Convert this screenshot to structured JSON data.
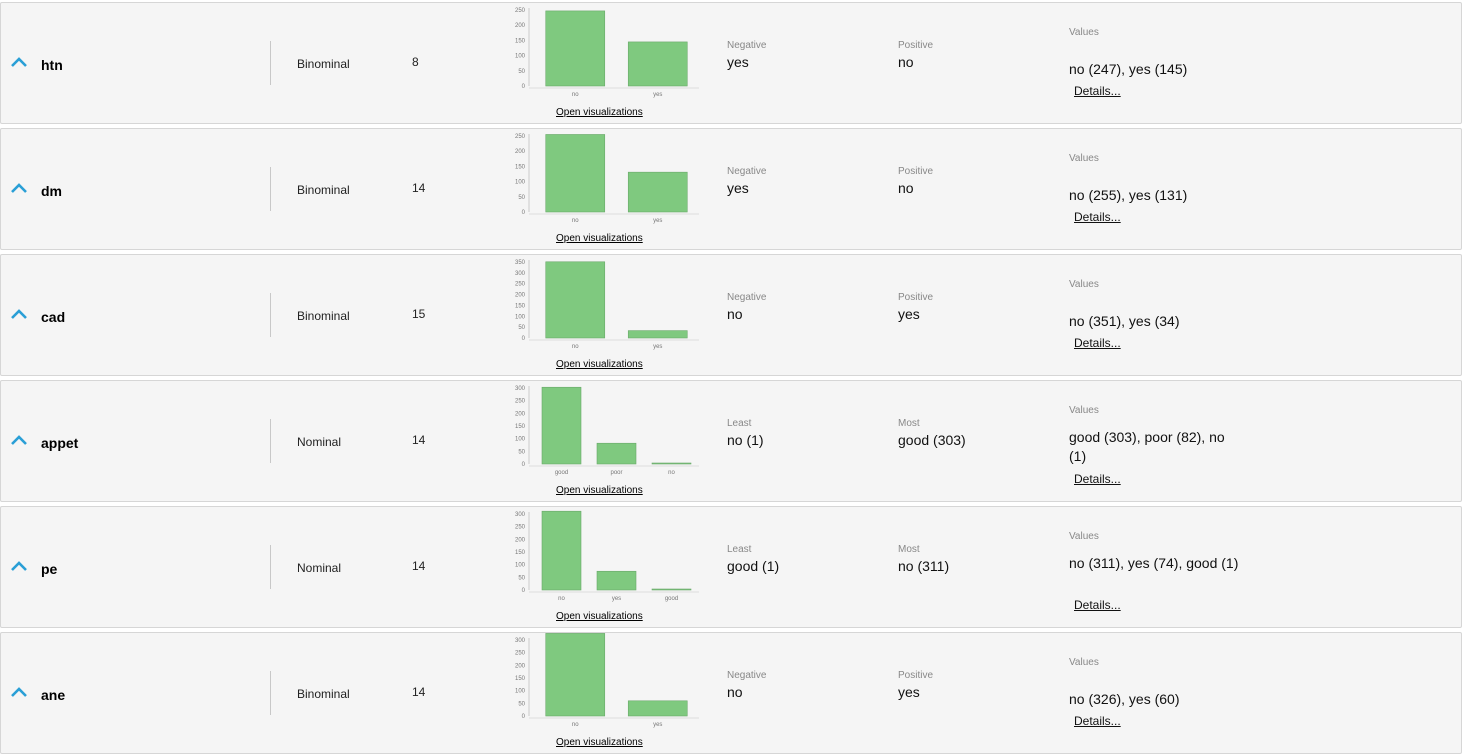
{
  "chart_axes": {
    "color": "#7fc97f"
  },
  "rows": [
    {
      "name": "htn",
      "type": "Binominal",
      "missing": "8",
      "chart": {
        "type": "bar",
        "categories": [
          "no",
          "yes"
        ],
        "values": [
          247,
          145
        ],
        "yticks": [
          "0",
          "50",
          "100",
          "150",
          "200",
          "250"
        ],
        "ymax": 250
      },
      "viz_link": "Open visualizations",
      "left_label": "Negative",
      "left_value": "yes",
      "right_label": "Positive",
      "right_value": "no",
      "values_label": "Values",
      "values_text": "no (247), yes (145)",
      "details": "Details..."
    },
    {
      "name": "dm",
      "type": "Binominal",
      "missing": "14",
      "chart": {
        "type": "bar",
        "categories": [
          "no",
          "yes"
        ],
        "values": [
          255,
          131
        ],
        "yticks": [
          "0",
          "50",
          "100",
          "150",
          "200",
          "250"
        ],
        "ymax": 250
      },
      "viz_link": "Open visualizations",
      "left_label": "Negative",
      "left_value": "yes",
      "right_label": "Positive",
      "right_value": "no",
      "values_label": "Values",
      "values_text": "no (255), yes (131)",
      "details": "Details..."
    },
    {
      "name": "cad",
      "type": "Binominal",
      "missing": "15",
      "chart": {
        "type": "bar",
        "categories": [
          "no",
          "yes"
        ],
        "values": [
          351,
          34
        ],
        "yticks": [
          "0",
          "50",
          "100",
          "150",
          "200",
          "250",
          "300",
          "350"
        ],
        "ymax": 350
      },
      "viz_link": "Open visualizations",
      "left_label": "Negative",
      "left_value": "no",
      "right_label": "Positive",
      "right_value": "yes",
      "values_label": "Values",
      "values_text": "no (351), yes (34)",
      "details": "Details..."
    },
    {
      "name": "appet",
      "type": "Nominal",
      "missing": "14",
      "chart": {
        "type": "bar",
        "categories": [
          "good",
          "poor",
          "no"
        ],
        "values": [
          303,
          82,
          1
        ],
        "yticks": [
          "0",
          "50",
          "100",
          "150",
          "200",
          "250",
          "300"
        ],
        "ymax": 300
      },
      "viz_link": "Open visualizations",
      "left_label": "Least",
      "left_value": "no (1)",
      "right_label": "Most",
      "right_value": "good (303)",
      "values_label": "Values",
      "values_text": "good (303), poor (82), no (1)",
      "details": "Details..."
    },
    {
      "name": "pe",
      "type": "Nominal",
      "missing": "14",
      "chart": {
        "type": "bar",
        "categories": [
          "no",
          "yes",
          "good"
        ],
        "values": [
          311,
          74,
          1
        ],
        "yticks": [
          "0",
          "50",
          "100",
          "150",
          "200",
          "250",
          "300"
        ],
        "ymax": 300
      },
      "viz_link": "Open visualizations",
      "left_label": "Least",
      "left_value": "good (1)",
      "right_label": "Most",
      "right_value": "no (311)",
      "values_label": "Values",
      "values_text": "no (311), yes (74), good (1)",
      "details": "Details..."
    },
    {
      "name": "ane",
      "type": "Binominal",
      "missing": "14",
      "chart": {
        "type": "bar",
        "categories": [
          "no",
          "yes"
        ],
        "values": [
          326,
          60
        ],
        "yticks": [
          "0",
          "50",
          "100",
          "150",
          "200",
          "250",
          "300"
        ],
        "ymax": 300
      },
      "viz_link": "Open visualizations",
      "left_label": "Negative",
      "left_value": "no",
      "right_label": "Positive",
      "right_value": "yes",
      "values_label": "Values",
      "values_text": "no (326), yes (60)",
      "details": "Details..."
    }
  ]
}
